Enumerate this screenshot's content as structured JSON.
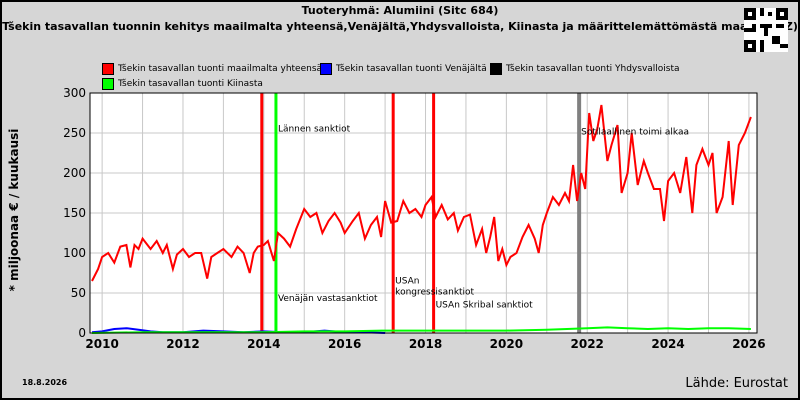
{
  "title_line1": "Tuoteryhmä: Alumiini (Sitc 684)",
  "title_line2": "Tšekin tasavallan tuonnin kehitys maailmalta yhteensä,Venäjältä,Yhdysvalloista, Kiinasta ja määrittelemättömästä maasta (QZ)",
  "legend": [
    {
      "label": "Tšekin tasavallan tuonti maailmalta yhteensä",
      "color": "#ff0000"
    },
    {
      "label": "Tšekin tasavallan tuonti Venäjältä",
      "color": "#0000ff"
    },
    {
      "label": "Tšekin tasavallan tuonti Yhdysvalloista",
      "color": "#000000"
    },
    {
      "label": "Tšekin tasavallan tuonti Kiinasta",
      "color": "#00ff00"
    }
  ],
  "ylabel": "* miljoonaa € / kuukausi",
  "date": "18.8.2026",
  "source": "Lähde: Eurostat",
  "chart_data": {
    "type": "line",
    "xlim": [
      2009.7,
      2026.2
    ],
    "ylim": [
      0,
      300
    ],
    "yticks": [
      0,
      50,
      100,
      150,
      200,
      250,
      300
    ],
    "xticks": [
      2010,
      2012,
      2014,
      2016,
      2018,
      2020,
      2022,
      2024,
      2026
    ],
    "grid": true,
    "series": [
      {
        "name": "Tšekin tasavallan tuonti maailmalta yhteensä",
        "color": "#ff0000",
        "x": [
          2009.75,
          2009.9,
          2010.0,
          2010.15,
          2010.3,
          2010.45,
          2010.6,
          2010.7,
          2010.8,
          2010.9,
          2011.0,
          2011.2,
          2011.35,
          2011.5,
          2011.6,
          2011.75,
          2011.85,
          2012.0,
          2012.15,
          2012.3,
          2012.45,
          2012.6,
          2012.7,
          2012.85,
          2013.0,
          2013.2,
          2013.35,
          2013.5,
          2013.65,
          2013.75,
          2013.85,
          2014.0,
          2014.1,
          2014.25,
          2014.35,
          2014.5,
          2014.65,
          2014.8,
          2015.0,
          2015.15,
          2015.3,
          2015.45,
          2015.6,
          2015.75,
          2015.9,
          2016.0,
          2016.2,
          2016.35,
          2016.5,
          2016.65,
          2016.8,
          2016.9,
          2017.0,
          2017.15,
          2017.3,
          2017.45,
          2017.6,
          2017.75,
          2017.9,
          2018.0,
          2018.15,
          2018.25,
          2018.4,
          2018.55,
          2018.7,
          2018.8,
          2018.95,
          2019.1,
          2019.25,
          2019.4,
          2019.5,
          2019.6,
          2019.7,
          2019.8,
          2019.9,
          2020.0,
          2020.1,
          2020.25,
          2020.4,
          2020.55,
          2020.7,
          2020.8,
          2020.9,
          2021.0,
          2021.15,
          2021.3,
          2021.45,
          2021.55,
          2021.65,
          2021.75,
          2021.85,
          2021.95,
          2022.05,
          2022.15,
          2022.25,
          2022.35,
          2022.5,
          2022.6,
          2022.75,
          2022.85,
          2023.0,
          2023.1,
          2023.25,
          2023.4,
          2023.5,
          2023.65,
          2023.8,
          2023.9,
          2024.0,
          2024.15,
          2024.3,
          2024.45,
          2024.6,
          2024.7,
          2024.85,
          2025.0,
          2025.1,
          2025.2,
          2025.35,
          2025.5,
          2025.6,
          2025.75,
          2025.9,
          2026.05
        ],
        "values": [
          65,
          80,
          95,
          100,
          88,
          108,
          110,
          82,
          110,
          105,
          118,
          105,
          115,
          100,
          110,
          80,
          98,
          105,
          95,
          100,
          100,
          68,
          95,
          100,
          105,
          95,
          108,
          100,
          75,
          100,
          108,
          110,
          115,
          90,
          125,
          118,
          108,
          130,
          155,
          145,
          150,
          125,
          140,
          150,
          138,
          125,
          140,
          150,
          118,
          135,
          145,
          120,
          165,
          138,
          140,
          165,
          150,
          155,
          145,
          160,
          170,
          145,
          160,
          142,
          150,
          128,
          145,
          148,
          110,
          130,
          100,
          120,
          145,
          90,
          105,
          85,
          95,
          100,
          120,
          135,
          118,
          100,
          135,
          150,
          170,
          160,
          175,
          165,
          210,
          165,
          200,
          180,
          275,
          240,
          255,
          285,
          215,
          235,
          260,
          175,
          200,
          250,
          185,
          215,
          200,
          180,
          180,
          140,
          190,
          200,
          175,
          220,
          150,
          210,
          230,
          210,
          225,
          150,
          170,
          240,
          160,
          235,
          250,
          270
        ]
      },
      {
        "name": "Tšekin tasavallan tuonti Venäjältä",
        "color": "#0000ff",
        "x": [
          2009.75,
          2010.0,
          2010.3,
          2010.6,
          2010.9,
          2011.2,
          2011.5,
          2012.0,
          2012.5,
          2013.0,
          2013.5,
          2014.0,
          2014.5,
          2015.0,
          2015.5,
          2016.0,
          2016.5,
          2017.0
        ],
        "values": [
          1,
          2,
          5,
          6,
          4,
          2,
          1,
          1,
          3,
          2,
          1,
          2,
          1,
          1,
          3,
          1,
          1,
          0
        ]
      },
      {
        "name": "Tšekin tasavallan tuonti Kiinasta",
        "color": "#00ff00",
        "x": [
          2009.75,
          2011.0,
          2012.0,
          2013.0,
          2014.0,
          2015.0,
          2016.0,
          2017.0,
          2018.0,
          2019.0,
          2020.0,
          2021.0,
          2021.5,
          2022.0,
          2022.5,
          2023.0,
          2023.5,
          2024.0,
          2024.5,
          2025.0,
          2025.5,
          2026.05
        ],
        "values": [
          0,
          1,
          1,
          1,
          1,
          2,
          2,
          3,
          3,
          3,
          3,
          4,
          5,
          6,
          7,
          6,
          5,
          6,
          5,
          6,
          6,
          5
        ]
      }
    ],
    "vlines": [
      {
        "x": 2013.95,
        "color": "#ff0000",
        "label": ""
      },
      {
        "x": 2014.3,
        "color": "#00ff00",
        "label": "Lännen sanktiot",
        "label_y": 252
      },
      {
        "x": 2014.3,
        "color": "#00ff00",
        "label": "Venäjän vastasanktiot",
        "label_y": 40
      },
      {
        "x": 2017.2,
        "color": "#ff0000",
        "label": "USAn kongressisanktiot",
        "label_y": 62,
        "label2_y": 48
      },
      {
        "x": 2018.2,
        "color": "#ff0000",
        "label": "USAn Skribal sanktiot",
        "label_y": 32
      },
      {
        "x": 2021.8,
        "color": "#808080",
        "label": "Sotilaallinen toimi alkaa",
        "label_y": 248
      }
    ]
  }
}
